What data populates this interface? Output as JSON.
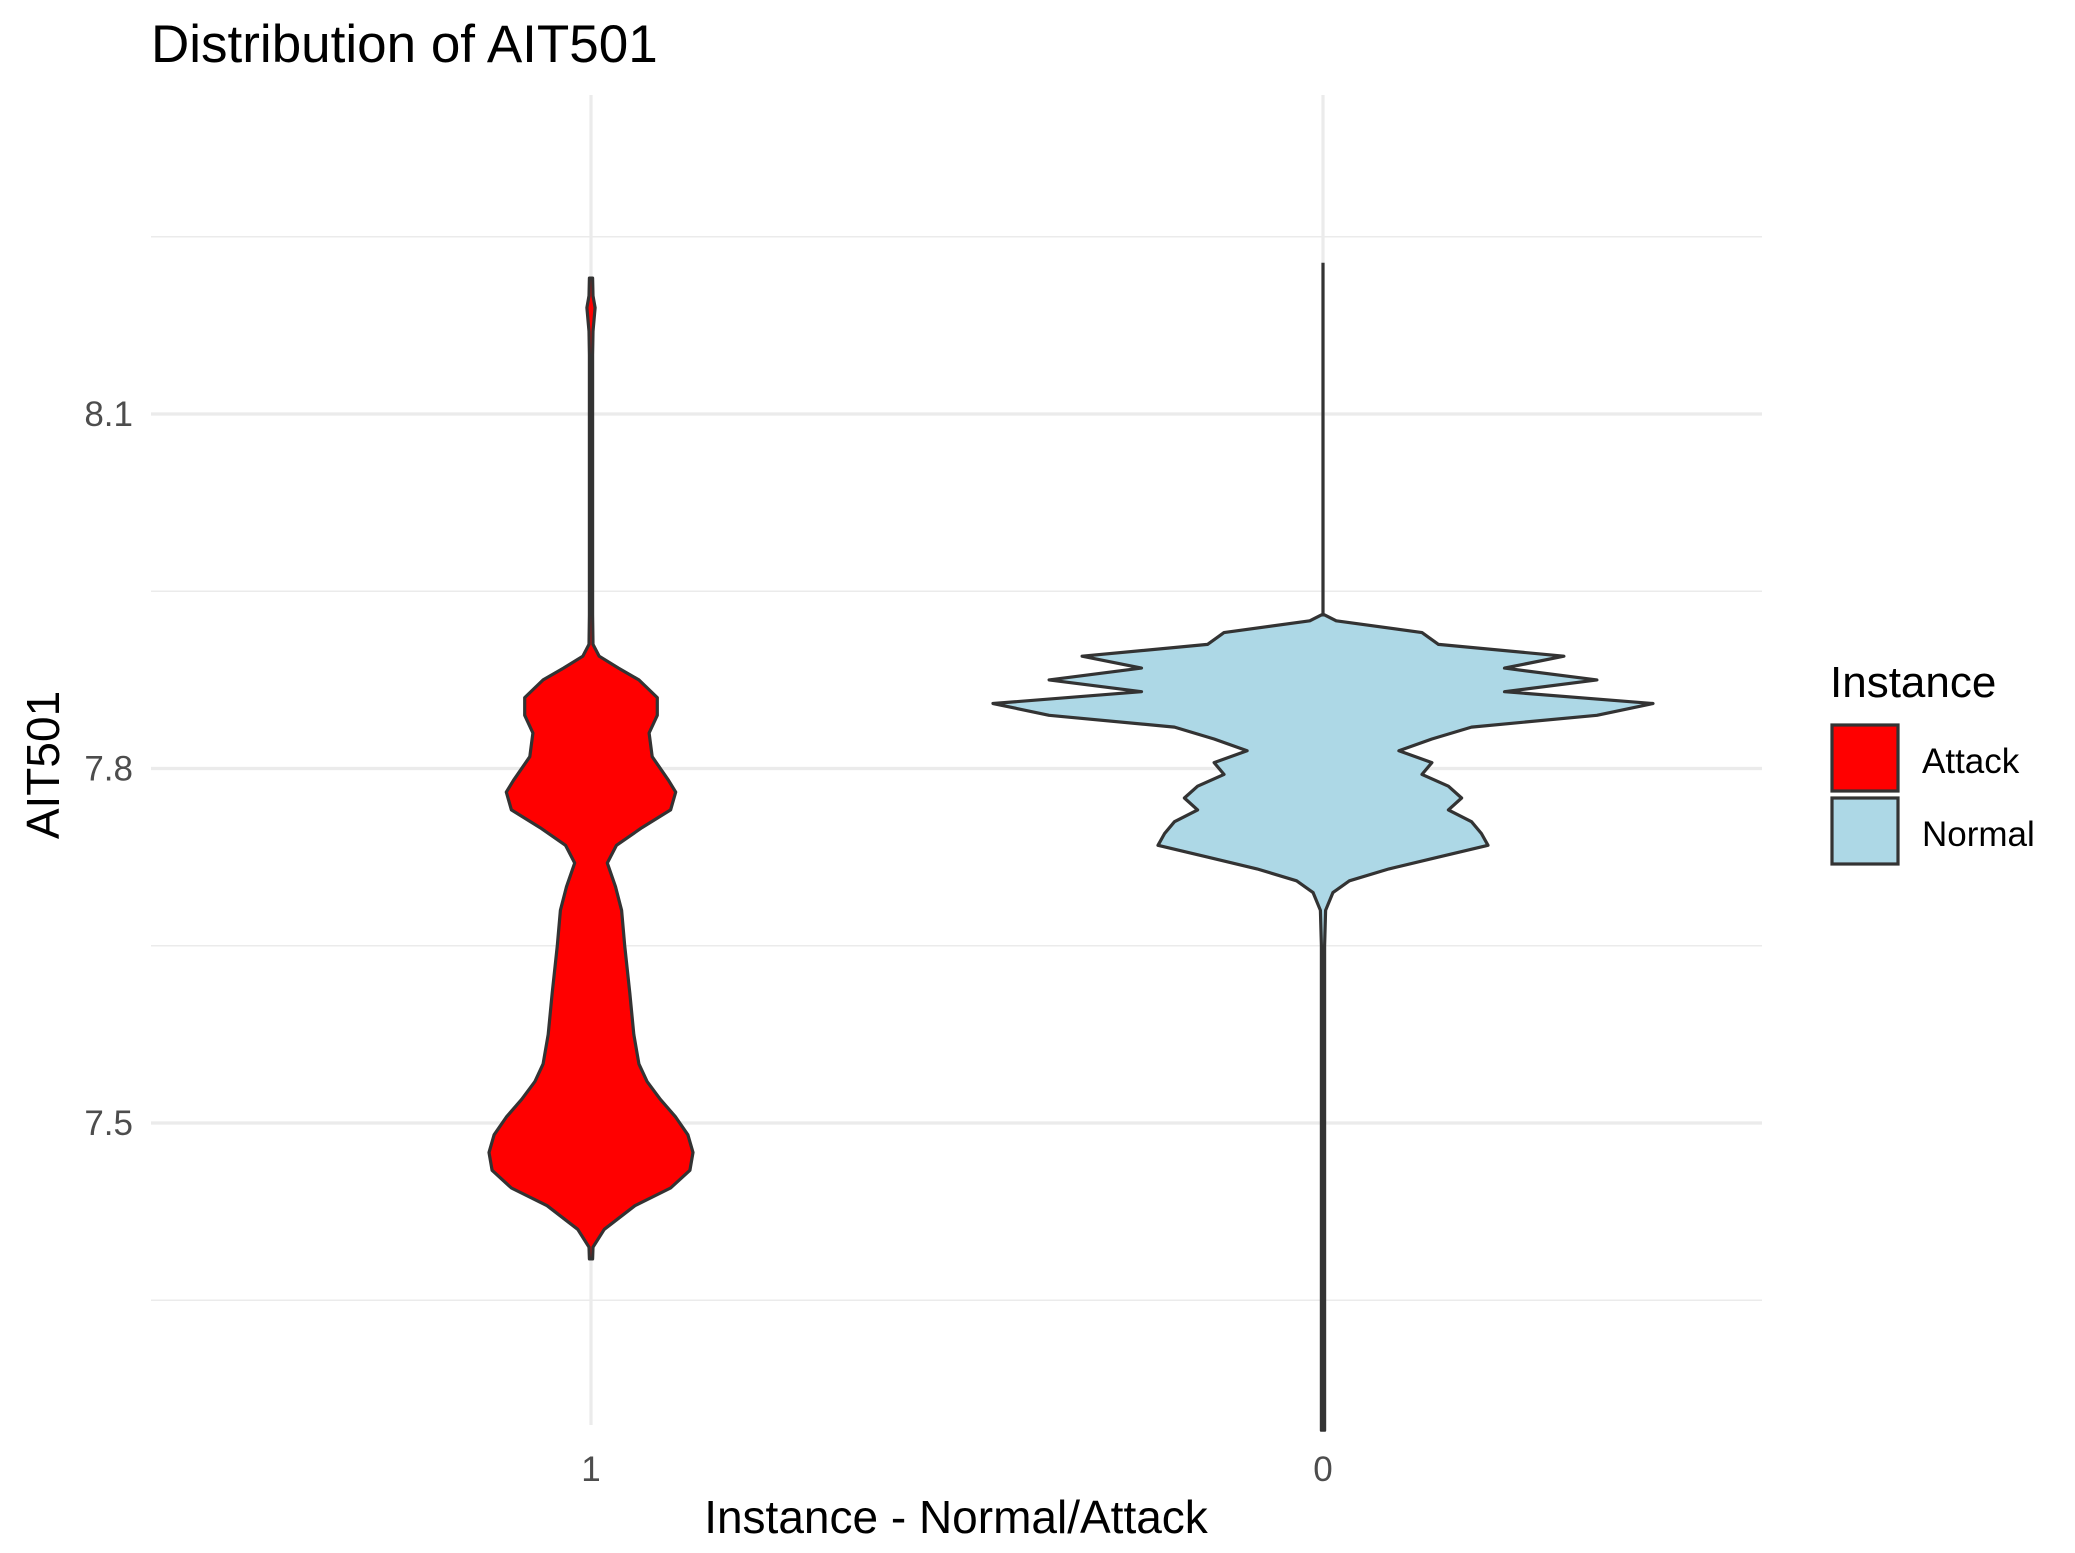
{
  "chart_data": {
    "type": "violin",
    "title": "Distribution of AIT501",
    "xlabel": "Instance - Normal/Attack",
    "ylabel": "AIT501",
    "categories": [
      "1",
      "0"
    ],
    "ylim": [
      7.23,
      8.33
    ],
    "y_ticks": [
      7.5,
      7.8,
      8.1
    ],
    "y_tick_labels": [
      "7.5",
      "7.8",
      "8.1"
    ],
    "y_minor_grid": [
      7.35,
      7.65,
      7.95,
      8.25
    ],
    "grid": true,
    "legend": {
      "title": "Instance",
      "position": "right",
      "entries": [
        {
          "label": "Attack",
          "color": "#ff0000"
        },
        {
          "label": "Normal",
          "color": "#add8e6"
        }
      ]
    },
    "series": [
      {
        "name": "Attack",
        "category": "1",
        "color": "#ff0000",
        "range": [
          7.385,
          8.215
        ],
        "density": [
          [
            7.385,
            0.0
          ],
          [
            7.395,
            0.02
          ],
          [
            7.41,
            0.13
          ],
          [
            7.43,
            0.43
          ],
          [
            7.445,
            0.78
          ],
          [
            7.46,
            0.97
          ],
          [
            7.475,
            1.0
          ],
          [
            7.49,
            0.95
          ],
          [
            7.505,
            0.83
          ],
          [
            7.52,
            0.68
          ],
          [
            7.535,
            0.55
          ],
          [
            7.55,
            0.47
          ],
          [
            7.575,
            0.42
          ],
          [
            7.61,
            0.38
          ],
          [
            7.65,
            0.33
          ],
          [
            7.68,
            0.3
          ],
          [
            7.7,
            0.24
          ],
          [
            7.72,
            0.16
          ],
          [
            7.735,
            0.25
          ],
          [
            7.75,
            0.5
          ],
          [
            7.765,
            0.78
          ],
          [
            7.78,
            0.83
          ],
          [
            7.79,
            0.76
          ],
          [
            7.81,
            0.6
          ],
          [
            7.83,
            0.57
          ],
          [
            7.845,
            0.65
          ],
          [
            7.86,
            0.65
          ],
          [
            7.875,
            0.47
          ],
          [
            7.885,
            0.27
          ],
          [
            7.895,
            0.08
          ],
          [
            7.905,
            0.02
          ],
          [
            7.93,
            0.01
          ],
          [
            8.0,
            0.01
          ],
          [
            8.15,
            0.01
          ],
          [
            8.17,
            0.02
          ],
          [
            8.19,
            0.04
          ],
          [
            8.2,
            0.02
          ],
          [
            8.215,
            0.0
          ]
        ]
      },
      {
        "name": "Normal",
        "category": "0",
        "color": "#add8e6",
        "range": [
          7.24,
          8.228
        ],
        "density": [
          [
            7.24,
            0.0
          ],
          [
            7.3,
            0.004
          ],
          [
            7.5,
            0.004
          ],
          [
            7.65,
            0.004
          ],
          [
            7.68,
            0.008
          ],
          [
            7.695,
            0.03
          ],
          [
            7.705,
            0.08
          ],
          [
            7.715,
            0.2
          ],
          [
            7.725,
            0.35
          ],
          [
            7.735,
            0.5
          ],
          [
            7.745,
            0.48
          ],
          [
            7.755,
            0.45
          ],
          [
            7.765,
            0.38
          ],
          [
            7.775,
            0.42
          ],
          [
            7.785,
            0.38
          ],
          [
            7.795,
            0.3
          ],
          [
            7.805,
            0.33
          ],
          [
            7.815,
            0.23
          ],
          [
            7.825,
            0.33
          ],
          [
            7.835,
            0.45
          ],
          [
            7.845,
            0.83
          ],
          [
            7.855,
            1.0
          ],
          [
            7.865,
            0.55
          ],
          [
            7.875,
            0.83
          ],
          [
            7.885,
            0.55
          ],
          [
            7.895,
            0.73
          ],
          [
            7.905,
            0.35
          ],
          [
            7.915,
            0.3
          ],
          [
            7.925,
            0.04
          ],
          [
            7.93,
            0.0
          ]
        ],
        "tail_top": 8.228
      }
    ]
  }
}
